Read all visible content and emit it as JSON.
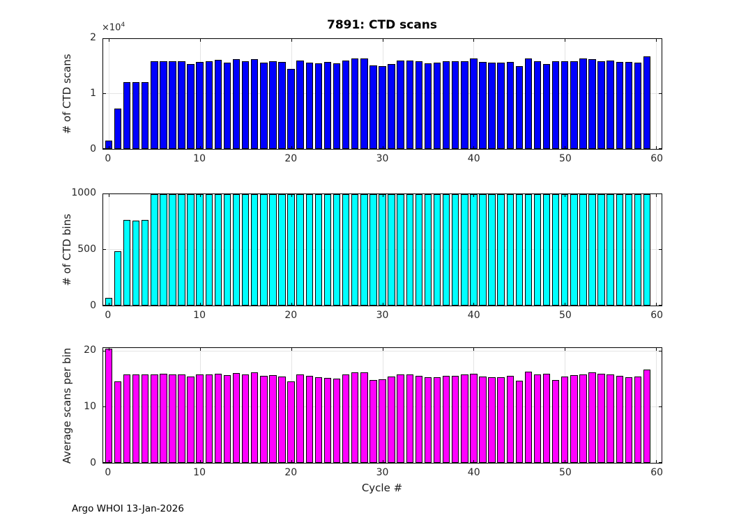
{
  "figure": {
    "title": "7891: CTD scans",
    "footer": "Argo WHOI 13-Jan-2026"
  },
  "chart_data": [
    {
      "type": "bar",
      "title": "7891: CTD scans",
      "ylabel": "# of CTD scans",
      "exp_base": "×10",
      "exp_sup": "4",
      "color": "#0000ff",
      "xlim": [
        -0.6,
        60.6
      ],
      "ylim": [
        0,
        20000
      ],
      "xticks": [
        0,
        10,
        20,
        30,
        40,
        50,
        60
      ],
      "yticks": [
        "0",
        "1",
        "2"
      ],
      "ytick_values": [
        0,
        10000,
        20000
      ],
      "x_start": 0,
      "values": [
        1500,
        7400,
        12200,
        12100,
        12200,
        15900,
        16000,
        15900,
        15900,
        15500,
        15800,
        15900,
        16200,
        15700,
        16300,
        16000,
        16300,
        15700,
        15900,
        15800,
        14600,
        16100,
        15700,
        15600,
        15800,
        15600,
        16100,
        16500,
        16400,
        15200,
        15100,
        15500,
        16100,
        16100,
        15900,
        15600,
        15700,
        16000,
        15900,
        16000,
        16400,
        15800,
        15700,
        15700,
        15800,
        15100,
        16400,
        16000,
        15500,
        15900,
        15900,
        16000,
        16400,
        16300,
        15900,
        16100,
        15800,
        15800,
        15700,
        16800
      ]
    },
    {
      "type": "bar",
      "title": "",
      "ylabel": "# of CTD bins",
      "color": "#00ffff",
      "xlim": [
        -0.6,
        60.6
      ],
      "ylim": [
        0,
        1000
      ],
      "xticks": [
        0,
        10,
        20,
        30,
        40,
        50,
        60
      ],
      "yticks": [
        "0",
        "500",
        "1000"
      ],
      "ytick_values": [
        0,
        500,
        1000
      ],
      "x_start": 0,
      "values": [
        70,
        490,
        770,
        765,
        770,
        1000,
        1000,
        1000,
        1000,
        1000,
        1000,
        1000,
        1000,
        1000,
        1000,
        1000,
        1000,
        1000,
        1000,
        1000,
        1000,
        1000,
        1000,
        1000,
        1000,
        1000,
        1000,
        1000,
        1000,
        1000,
        1000,
        1000,
        1000,
        1000,
        1000,
        1000,
        1000,
        1000,
        1000,
        1000,
        1000,
        1000,
        1000,
        1000,
        1000,
        1000,
        1000,
        1000,
        1000,
        1000,
        1000,
        1000,
        1000,
        1000,
        1000,
        1000,
        1000,
        1000,
        1000,
        1000
      ]
    },
    {
      "type": "bar",
      "title": "",
      "ylabel": "Average scans per bin",
      "xlabel": "Cycle #",
      "color": "#ff00ff",
      "xlim": [
        -0.6,
        60.6
      ],
      "ylim": [
        0,
        20.6
      ],
      "xticks": [
        0,
        10,
        20,
        30,
        40,
        50,
        60
      ],
      "yticks": [
        "0",
        "10",
        "20"
      ],
      "ytick_values": [
        0,
        10,
        20
      ],
      "x_start": 0,
      "values": [
        20.5,
        14.6,
        15.9,
        15.8,
        15.9,
        15.9,
        16.0,
        15.9,
        15.9,
        15.5,
        15.8,
        15.9,
        16.0,
        15.7,
        16.1,
        15.8,
        16.2,
        15.6,
        15.7,
        15.5,
        14.6,
        15.9,
        15.6,
        15.4,
        15.2,
        15.1,
        15.9,
        16.2,
        16.2,
        14.8,
        15.0,
        15.5,
        15.8,
        15.9,
        15.6,
        15.3,
        15.4,
        15.6,
        15.6,
        15.8,
        16.0,
        15.5,
        15.4,
        15.4,
        15.6,
        14.7,
        16.3,
        15.9,
        16.0,
        14.9,
        15.5,
        15.7,
        15.9,
        16.2,
        16.0,
        15.8,
        15.6,
        15.4,
        15.5,
        16.7
      ]
    }
  ]
}
